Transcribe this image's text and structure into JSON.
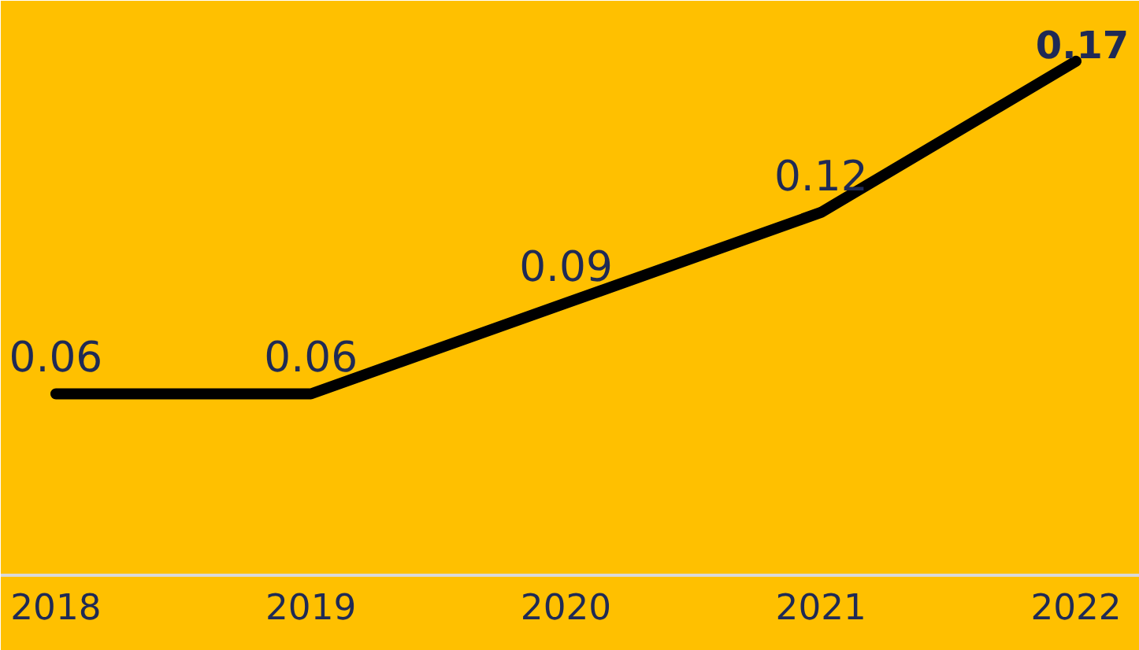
{
  "chart_data": {
    "type": "line",
    "categories": [
      "2018",
      "2019",
      "2020",
      "2021",
      "2022"
    ],
    "series": [
      {
        "color": "#000000",
        "values": [
          0.06,
          0.06,
          0.09,
          0.12,
          0.17
        ]
      }
    ],
    "ylim": [
      0,
      0.19
    ],
    "data_labels": true,
    "grid": false,
    "marker": "none",
    "line_style": "solid",
    "tick_labels": "x"
  }
}
